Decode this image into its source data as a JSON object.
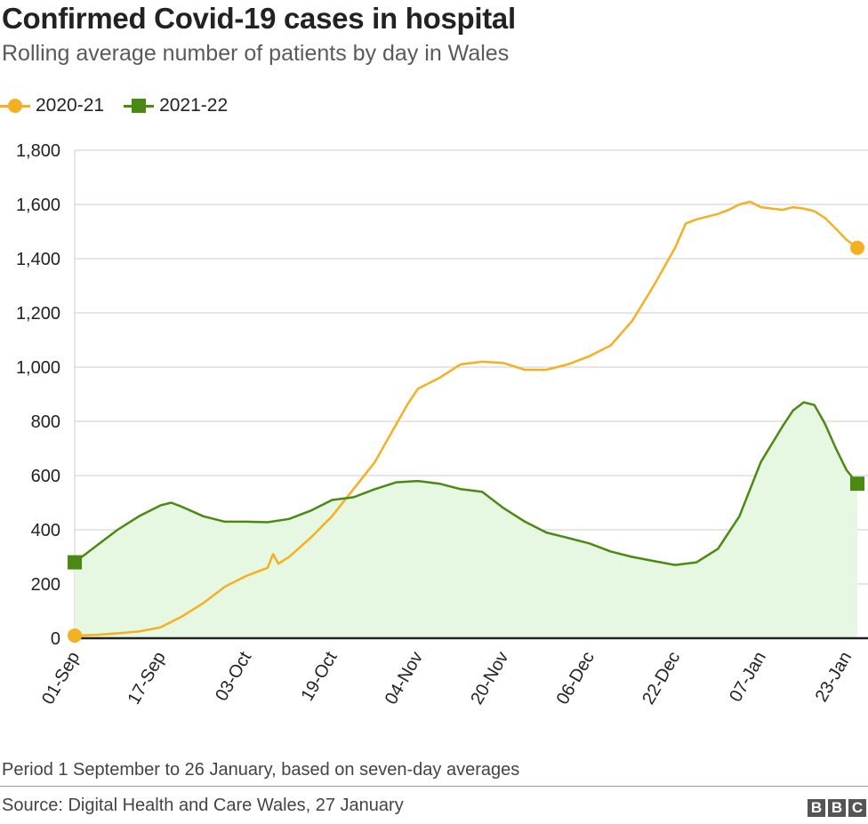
{
  "title": "Confirmed Covid-19 cases in hospital",
  "subtitle": "Rolling average number of patients by day in Wales",
  "footnote": "Period 1 September to 26 January, based on seven-day averages",
  "source": "Source: Digital Health and Care Wales, 27 January",
  "logo": [
    "B",
    "B",
    "C"
  ],
  "colors": {
    "series_2020": "#f5b021",
    "series_2021": "#4b8a12",
    "area_fill": "#e6f7e2",
    "grid": "#cccccc",
    "axis": "#222222"
  },
  "chart_data": {
    "type": "line",
    "title": "Confirmed Covid-19 cases in hospital",
    "subtitle": "Rolling average number of patients by day in Wales",
    "xlabel": "",
    "ylabel": "",
    "x_unit": "days since 01-Sep",
    "x_range": [
      0,
      146
    ],
    "xticks": [
      {
        "day": 0,
        "label": "01-Sep"
      },
      {
        "day": 16,
        "label": "17-Sep"
      },
      {
        "day": 32,
        "label": "03-Oct"
      },
      {
        "day": 48,
        "label": "19-Oct"
      },
      {
        "day": 64,
        "label": "04-Nov"
      },
      {
        "day": 80,
        "label": "20-Nov"
      },
      {
        "day": 96,
        "label": "06-Dec"
      },
      {
        "day": 112,
        "label": "22-Dec"
      },
      {
        "day": 128,
        "label": "07-Jan"
      },
      {
        "day": 144,
        "label": "23-Jan"
      }
    ],
    "ylim": [
      0,
      1800
    ],
    "yticks": [
      {
        "value": 0,
        "label": "0"
      },
      {
        "value": 200,
        "label": "200"
      },
      {
        "value": 400,
        "label": "400"
      },
      {
        "value": 600,
        "label": "600"
      },
      {
        "value": 800,
        "label": "800"
      },
      {
        "value": 1000,
        "label": "1,000"
      },
      {
        "value": 1200,
        "label": "1,200"
      },
      {
        "value": 1400,
        "label": "1,400"
      },
      {
        "value": 1600,
        "label": "1,600"
      },
      {
        "value": 1800,
        "label": "1,800"
      }
    ],
    "grid": true,
    "legend": "top-left",
    "series": [
      {
        "name": "2020-21",
        "marker": "circle",
        "color": "#f5b021",
        "fill": false,
        "points": [
          [
            0,
            10
          ],
          [
            4,
            12
          ],
          [
            8,
            18
          ],
          [
            12,
            25
          ],
          [
            16,
            40
          ],
          [
            20,
            80
          ],
          [
            24,
            130
          ],
          [
            28,
            190
          ],
          [
            32,
            230
          ],
          [
            36,
            260
          ],
          [
            37,
            310
          ],
          [
            38,
            275
          ],
          [
            40,
            300
          ],
          [
            44,
            370
          ],
          [
            48,
            450
          ],
          [
            52,
            550
          ],
          [
            56,
            650
          ],
          [
            60,
            790
          ],
          [
            62,
            860
          ],
          [
            64,
            920
          ],
          [
            68,
            960
          ],
          [
            72,
            1010
          ],
          [
            76,
            1020
          ],
          [
            80,
            1015
          ],
          [
            84,
            990
          ],
          [
            88,
            990
          ],
          [
            92,
            1010
          ],
          [
            96,
            1040
          ],
          [
            100,
            1080
          ],
          [
            104,
            1170
          ],
          [
            108,
            1300
          ],
          [
            112,
            1440
          ],
          [
            114,
            1530
          ],
          [
            116,
            1545
          ],
          [
            120,
            1565
          ],
          [
            122,
            1580
          ],
          [
            124,
            1600
          ],
          [
            126,
            1610
          ],
          [
            128,
            1590
          ],
          [
            130,
            1585
          ],
          [
            132,
            1580
          ],
          [
            134,
            1590
          ],
          [
            136,
            1585
          ],
          [
            138,
            1575
          ],
          [
            140,
            1550
          ],
          [
            142,
            1510
          ],
          [
            144,
            1470
          ],
          [
            146,
            1440
          ]
        ]
      },
      {
        "name": "2021-22",
        "marker": "square",
        "color": "#4b8a12",
        "fill": true,
        "points": [
          [
            0,
            280
          ],
          [
            4,
            340
          ],
          [
            8,
            400
          ],
          [
            12,
            450
          ],
          [
            16,
            490
          ],
          [
            18,
            500
          ],
          [
            20,
            485
          ],
          [
            24,
            450
          ],
          [
            28,
            430
          ],
          [
            32,
            430
          ],
          [
            36,
            428
          ],
          [
            40,
            440
          ],
          [
            44,
            470
          ],
          [
            48,
            510
          ],
          [
            52,
            520
          ],
          [
            56,
            550
          ],
          [
            60,
            575
          ],
          [
            64,
            580
          ],
          [
            68,
            570
          ],
          [
            72,
            550
          ],
          [
            76,
            540
          ],
          [
            80,
            480
          ],
          [
            84,
            430
          ],
          [
            88,
            390
          ],
          [
            92,
            370
          ],
          [
            96,
            350
          ],
          [
            100,
            320
          ],
          [
            104,
            300
          ],
          [
            108,
            285
          ],
          [
            112,
            270
          ],
          [
            116,
            280
          ],
          [
            120,
            330
          ],
          [
            124,
            450
          ],
          [
            128,
            650
          ],
          [
            132,
            780
          ],
          [
            134,
            840
          ],
          [
            136,
            870
          ],
          [
            138,
            860
          ],
          [
            140,
            790
          ],
          [
            142,
            700
          ],
          [
            144,
            620
          ],
          [
            146,
            570
          ]
        ]
      }
    ]
  }
}
